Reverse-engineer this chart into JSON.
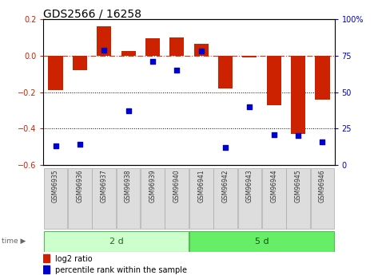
{
  "title": "GDS2566 / 16258",
  "samples": [
    "GSM96935",
    "GSM96936",
    "GSM96937",
    "GSM96938",
    "GSM96939",
    "GSM96940",
    "GSM96941",
    "GSM96942",
    "GSM96943",
    "GSM96944",
    "GSM96945",
    "GSM96946"
  ],
  "log2_ratio": [
    -0.19,
    -0.08,
    0.16,
    0.025,
    0.095,
    0.1,
    0.065,
    -0.18,
    -0.01,
    -0.27,
    -0.43,
    -0.24
  ],
  "percentile_rank": [
    13,
    14,
    79,
    37,
    71,
    65,
    78,
    12,
    40,
    21,
    20,
    16
  ],
  "group_labels": [
    "2 d",
    "5 d"
  ],
  "group_split": 6,
  "bar_color": "#cc2200",
  "scatter_color": "#0000cc",
  "ylim_left": [
    -0.6,
    0.2
  ],
  "ylim_right": [
    0,
    100
  ],
  "yticks_left": [
    -0.6,
    -0.4,
    -0.2,
    0.0,
    0.2
  ],
  "yticks_right": [
    0,
    25,
    50,
    75,
    100
  ],
  "group1_color_light": "#ccffcc",
  "group2_color": "#66ee66",
  "bar_width": 0.6,
  "scatter_size": 22,
  "title_fontsize": 10,
  "label_fontsize": 5.5,
  "group_fontsize": 8,
  "legend_fontsize": 7,
  "yticklabel_fontsize": 7
}
